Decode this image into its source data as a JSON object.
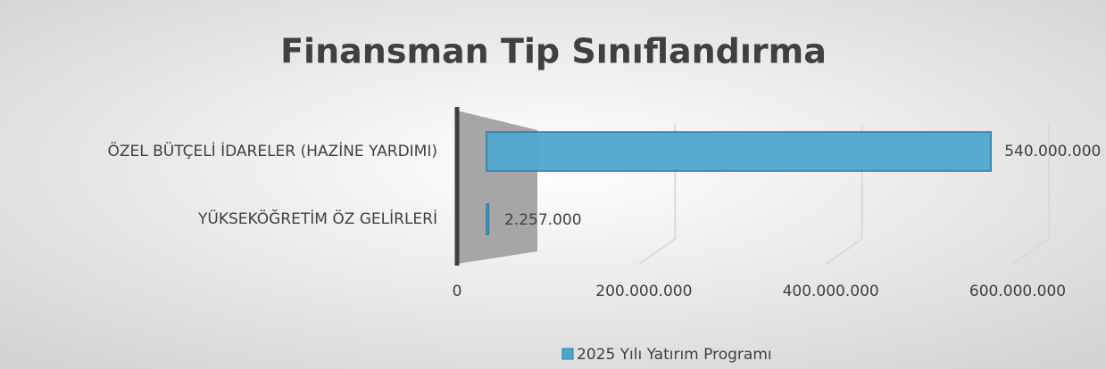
{
  "chart_data": {
    "type": "bar",
    "orientation": "horizontal",
    "title": "Finansman Tip Sınıflandırma",
    "categories": [
      "ÖZEL BÜTÇELİ İDARELER (HAZİNE YARDIMI)",
      "YÜKSEKÖĞRETİM ÖZ GELİRLERİ"
    ],
    "series": [
      {
        "name": "2025 Yılı Yatırım Programı",
        "color": "#4ea7cc",
        "values": [
          540000000,
          2257000
        ],
        "value_labels": [
          "540.000.000",
          "2.257.000"
        ]
      }
    ],
    "xlim": [
      0,
      600000000
    ],
    "xticks": [
      0,
      {
        "value": 200000000,
        "label": "200.000.000"
      },
      {
        "value": 400000000,
        "label": "400.000.000"
      },
      {
        "value": 600000000,
        "label": "600.000.000"
      }
    ],
    "grid": true,
    "legend": "bottom"
  }
}
